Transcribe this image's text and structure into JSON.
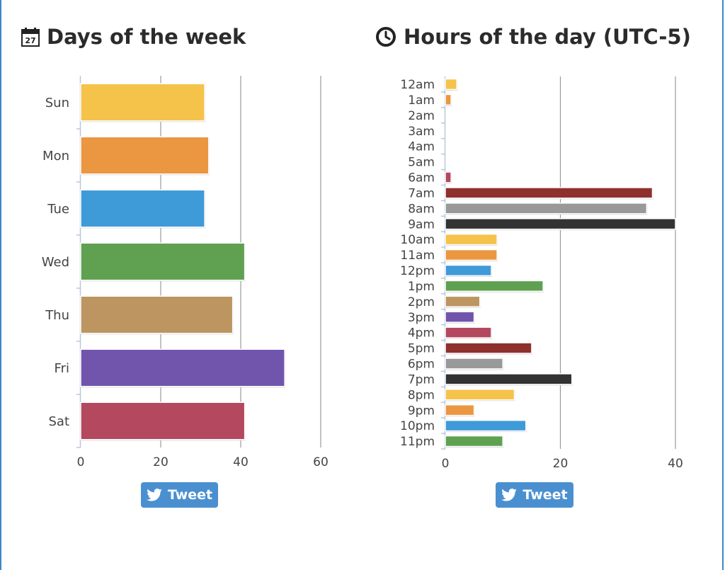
{
  "panels": {
    "days": {
      "title": "Days of the week",
      "icon": "calendar-icon",
      "tweet_label": "Tweet"
    },
    "hours": {
      "title": "Hours of the day (UTC-5)",
      "icon": "clock-icon",
      "tweet_label": "Tweet"
    }
  },
  "chart_data": [
    {
      "type": "bar",
      "orientation": "horizontal",
      "title": "Days of the week",
      "categories": [
        "Sun",
        "Mon",
        "Tue",
        "Wed",
        "Thu",
        "Fri",
        "Sat"
      ],
      "values": [
        31,
        32,
        31,
        41,
        38,
        51,
        41
      ],
      "colors": [
        "#f5c24a",
        "#eb9640",
        "#3f9ad8",
        "#5fa150",
        "#bc9560",
        "#7155ad",
        "#b3485e"
      ],
      "xlim": [
        0,
        60
      ],
      "xticks": [
        0,
        20,
        40,
        60
      ],
      "grid": true,
      "legend": "none"
    },
    {
      "type": "bar",
      "orientation": "horizontal",
      "title": "Hours of the day (UTC-5)",
      "categories": [
        "12am",
        "1am",
        "2am",
        "3am",
        "4am",
        "5am",
        "6am",
        "7am",
        "8am",
        "9am",
        "10am",
        "11am",
        "12pm",
        "1pm",
        "2pm",
        "3pm",
        "4pm",
        "5pm",
        "6pm",
        "7pm",
        "8pm",
        "9pm",
        "10pm",
        "11pm"
      ],
      "values": [
        2,
        1,
        0,
        0,
        0,
        0,
        1,
        36,
        35,
        40,
        9,
        9,
        8,
        17,
        6,
        5,
        8,
        15,
        10,
        22,
        12,
        5,
        14,
        10
      ],
      "colors": [
        "#f5c24a",
        "#eb9640",
        "#3f9ad8",
        "#5fa150",
        "#bc9560",
        "#7155ad",
        "#b3485e",
        "#8e302c",
        "#999999",
        "#333333",
        "#f5c24a",
        "#eb9640",
        "#3f9ad8",
        "#5fa150",
        "#bc9560",
        "#7155ad",
        "#b3485e",
        "#8e302c",
        "#999999",
        "#333333",
        "#f5c24a",
        "#eb9640",
        "#3f9ad8",
        "#5fa150"
      ],
      "xlim": [
        0,
        40
      ],
      "xticks": [
        0,
        20,
        40
      ],
      "grid": true,
      "legend": "none"
    }
  ]
}
